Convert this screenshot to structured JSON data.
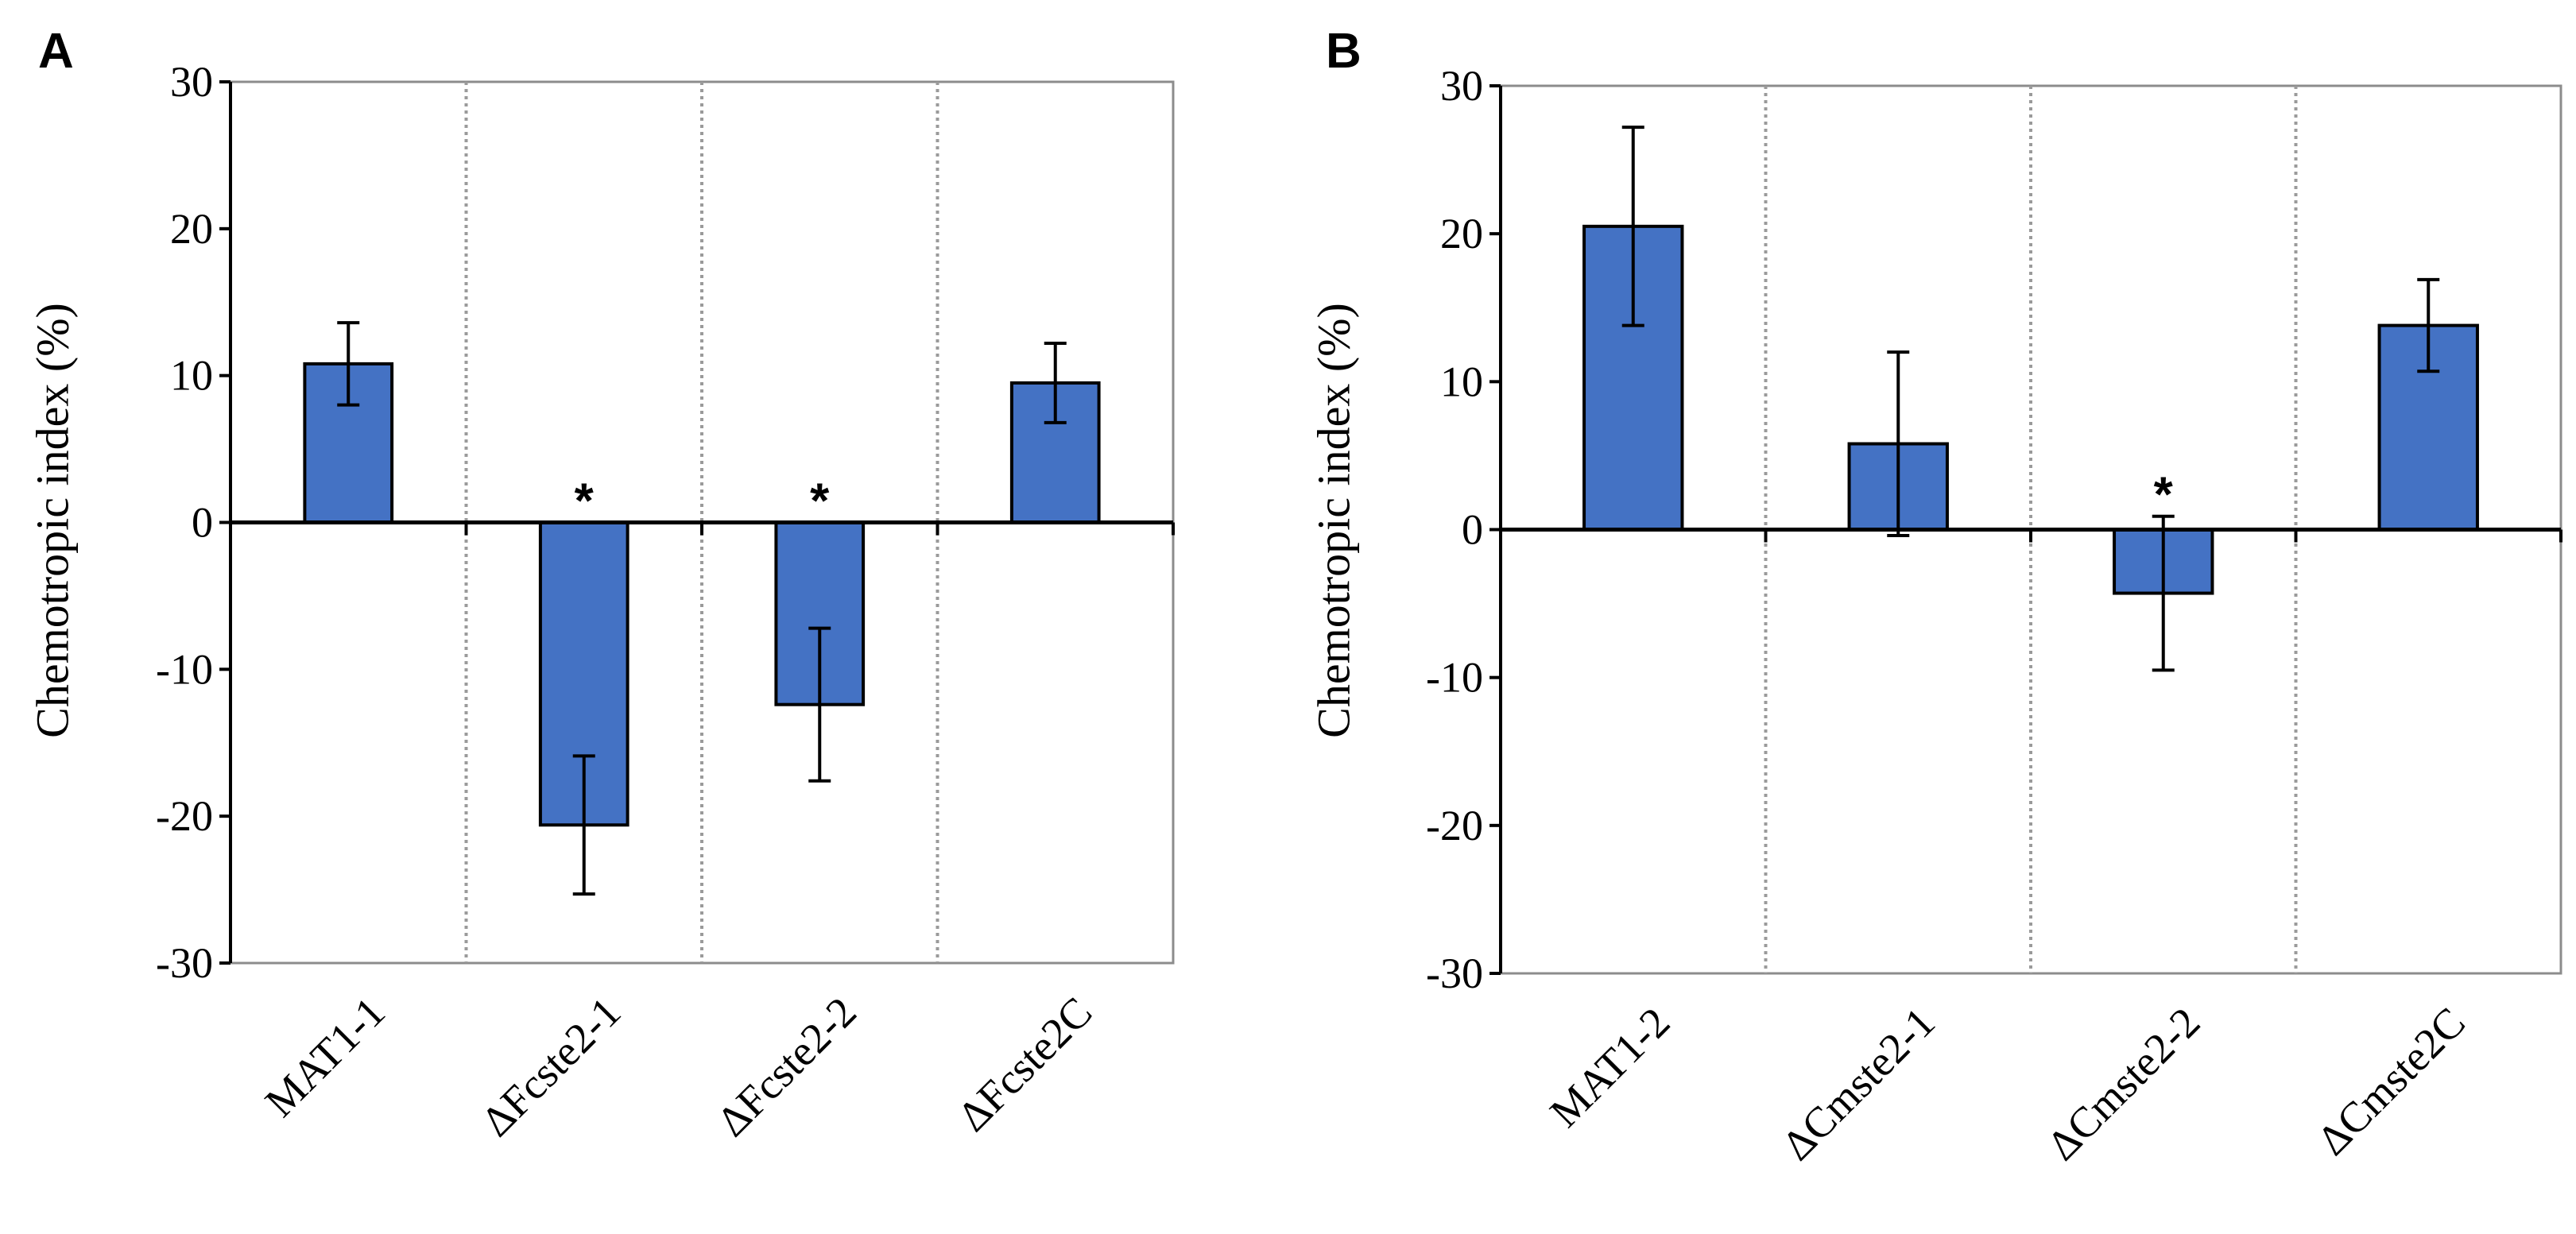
{
  "chart_data": [
    {
      "type": "bar",
      "panel_label": "A",
      "ylabel": "Chemotropic index (%)",
      "xlabel": "",
      "ylim": [
        -30,
        30
      ],
      "yticks": [
        30,
        20,
        10,
        0,
        -10,
        -20,
        -30
      ],
      "grid": "vertical dotted separators between categories",
      "bar_color": "#4472c4",
      "categories": [
        "MAT1-1",
        "ΔFcste2-1",
        "ΔFcste2-2",
        "ΔFcste2C"
      ],
      "values": [
        10.8,
        -20.6,
        -12.4,
        9.5
      ],
      "errors": [
        2.8,
        4.7,
        5.2,
        2.7
      ],
      "significant": [
        false,
        true,
        true,
        false
      ],
      "significance_marker": "*"
    },
    {
      "type": "bar",
      "panel_label": "B",
      "ylabel": "Chemotropic index (%)",
      "xlabel": "",
      "ylim": [
        -30,
        30
      ],
      "yticks": [
        30,
        20,
        10,
        0,
        -10,
        -20,
        -30
      ],
      "grid": "vertical dotted separators between categories",
      "bar_color": "#4472c4",
      "categories": [
        "MAT1-2",
        "ΔCmste2-1",
        "ΔCmste2-2",
        "ΔCmste2C"
      ],
      "values": [
        20.5,
        5.8,
        -4.3,
        13.8
      ],
      "errors": [
        6.7,
        6.2,
        5.2,
        3.1
      ],
      "significant": [
        false,
        false,
        true,
        false
      ],
      "significance_marker": "*"
    }
  ]
}
